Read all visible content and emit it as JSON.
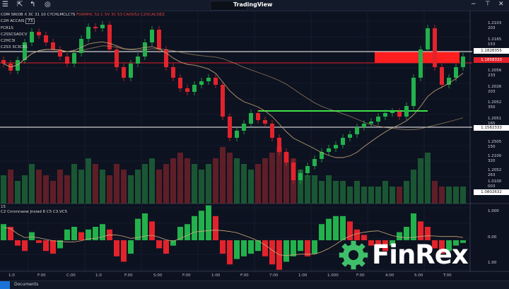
{
  "app": {
    "title": "TradingView",
    "toolbar_icons": [
      "menu-icon",
      "cursor-icon",
      "drawing-icon",
      "alert-icon"
    ],
    "window_controls": [
      "minimize",
      "restore",
      "close"
    ]
  },
  "legend": {
    "symbol_line": "COM SRIOB X 3C 31 10 C?CHLMCLC?S",
    "ohlc_line": "FOAMHC 52 C 5V 3C 53 CAOV52 C2VCACOEZ",
    "line2": "C2H ACCAIS",
    "line2_tag": "73",
    "line3": "FCR1S",
    "line4": "C2SSCSAOCV",
    "line5": "C2HC3I",
    "line6": "C2S3 3C3C8S"
  },
  "indicator_legend": {
    "index": "15",
    "label": "C2 Cnrsnnaow Jnsiad 6 C5 C3.VC5"
  },
  "price_axis": {
    "labels": [
      "1.2103 203",
      "1.2165 153",
      "1.2056 233",
      "1.2026 203",
      "1.2052 350",
      "1.2051 165",
      "1.2505 150",
      "1.2100 320",
      "1.2052 263",
      "1.0100 003"
    ],
    "boxes": [
      {
        "label": "1.1828355",
        "style": "white"
      },
      {
        "label": "1.1858333",
        "style": "red"
      },
      {
        "label": "1.1582333",
        "style": "white"
      },
      {
        "label": "1.0802632",
        "style": "white"
      }
    ]
  },
  "indicator_axis": {
    "labels": [
      "1.000",
      "0.00",
      "1.00"
    ]
  },
  "time_axis": {
    "labels": [
      "1:0",
      "F:00",
      "C:00",
      "1:0",
      "F:00",
      "S:00",
      "F:00",
      "1:00",
      "F:00",
      "7:00",
      "1:00",
      "1.000",
      "F:00",
      "4:00",
      "5:00",
      "T:00"
    ]
  },
  "taskbar": {
    "label": "Documents"
  },
  "logo": {
    "text": "FinRex"
  },
  "colors": {
    "up": "#22b14c",
    "down": "#e3232c",
    "ma": "#c8a878",
    "background": "#0d1220",
    "level_green": "#3ee04a",
    "zone_red": "#ff1f1f"
  },
  "chart_data": {
    "type": "candlestick",
    "ylim": [
      1.108,
      1.216
    ],
    "closes": [
      1.188,
      1.184,
      1.19,
      1.2,
      1.206,
      1.204,
      1.2,
      1.196,
      1.192,
      1.188,
      1.194,
      1.202,
      1.2088,
      1.208,
      1.21,
      1.196,
      1.186,
      1.18,
      1.188,
      1.192,
      1.2,
      1.2072,
      1.196,
      1.186,
      1.18,
      1.174,
      1.172,
      1.176,
      1.178,
      1.18,
      1.176,
      1.158,
      1.146,
      1.15,
      1.154,
      1.16,
      1.156,
      1.154,
      1.146,
      1.138,
      1.132,
      1.122,
      1.126,
      1.13,
      1.134,
      1.138,
      1.14,
      1.142,
      1.146,
      1.148,
      1.152,
      1.154,
      1.1552,
      1.158,
      1.16,
      1.1608,
      1.158,
      1.164,
      1.18,
      1.196,
      1.208,
      1.186,
      1.176,
      1.18,
      1.186,
      1.192
    ],
    "volume": [
      0.5,
      0.6,
      0.4,
      0.5,
      0.7,
      0.6,
      0.5,
      0.4,
      0.6,
      0.5,
      0.7,
      0.6,
      0.8,
      0.7,
      0.6,
      0.5,
      0.7,
      0.6,
      0.5,
      0.6,
      0.7,
      0.8,
      0.6,
      0.7,
      0.8,
      0.9,
      0.8,
      0.7,
      0.6,
      0.7,
      0.8,
      1.0,
      0.9,
      0.8,
      0.7,
      0.6,
      0.7,
      0.8,
      0.9,
      1.0,
      0.9,
      0.8,
      0.6,
      0.5,
      0.5,
      0.4,
      0.5,
      0.4,
      0.4,
      0.3,
      0.4,
      0.3,
      0.3,
      0.3,
      0.4,
      0.3,
      0.3,
      0.4,
      0.6,
      0.8,
      0.9,
      0.4,
      0.3,
      0.3,
      0.3,
      0.3
    ],
    "oscillator": [
      0.6,
      0.5,
      -0.2,
      -0.4,
      0.3,
      -0.1,
      -0.4,
      -0.5,
      -0.3,
      0.4,
      0.5,
      0.3,
      0.4,
      0.5,
      0.6,
      0.4,
      -0.6,
      -0.8,
      -0.5,
      0.8,
      1.0,
      0.7,
      -0.3,
      -0.5,
      -0.2,
      0.5,
      0.6,
      0.9,
      1.1,
      1.3,
      0.9,
      -0.5,
      -0.9,
      -0.7,
      -0.6,
      -0.5,
      -0.4,
      -0.6,
      -0.9,
      -1.1,
      -0.8,
      -0.6,
      -0.4,
      -0.6,
      -0.5,
      0.6,
      0.8,
      0.9,
      0.9,
      0.7,
      0.4,
      0.2,
      -0.2,
      -0.3,
      -0.4,
      -0.2,
      0.3,
      0.5,
      1.0,
      0.7,
      0.5,
      -0.3,
      -0.5,
      -0.4,
      -0.2,
      -0.1
    ],
    "levels": [
      {
        "price": 1.1948,
        "color": "white"
      },
      {
        "price": 1.1884,
        "color": "red"
      },
      {
        "price": 1.152,
        "color": "white"
      }
    ],
    "support_line": {
      "price": 1.1612,
      "from_index": 36,
      "to_index": 60
    },
    "zone": {
      "from_price": 1.1884,
      "to_price": 1.1948,
      "from_index": 53
    },
    "moving_averages": [
      10,
      30
    ]
  }
}
